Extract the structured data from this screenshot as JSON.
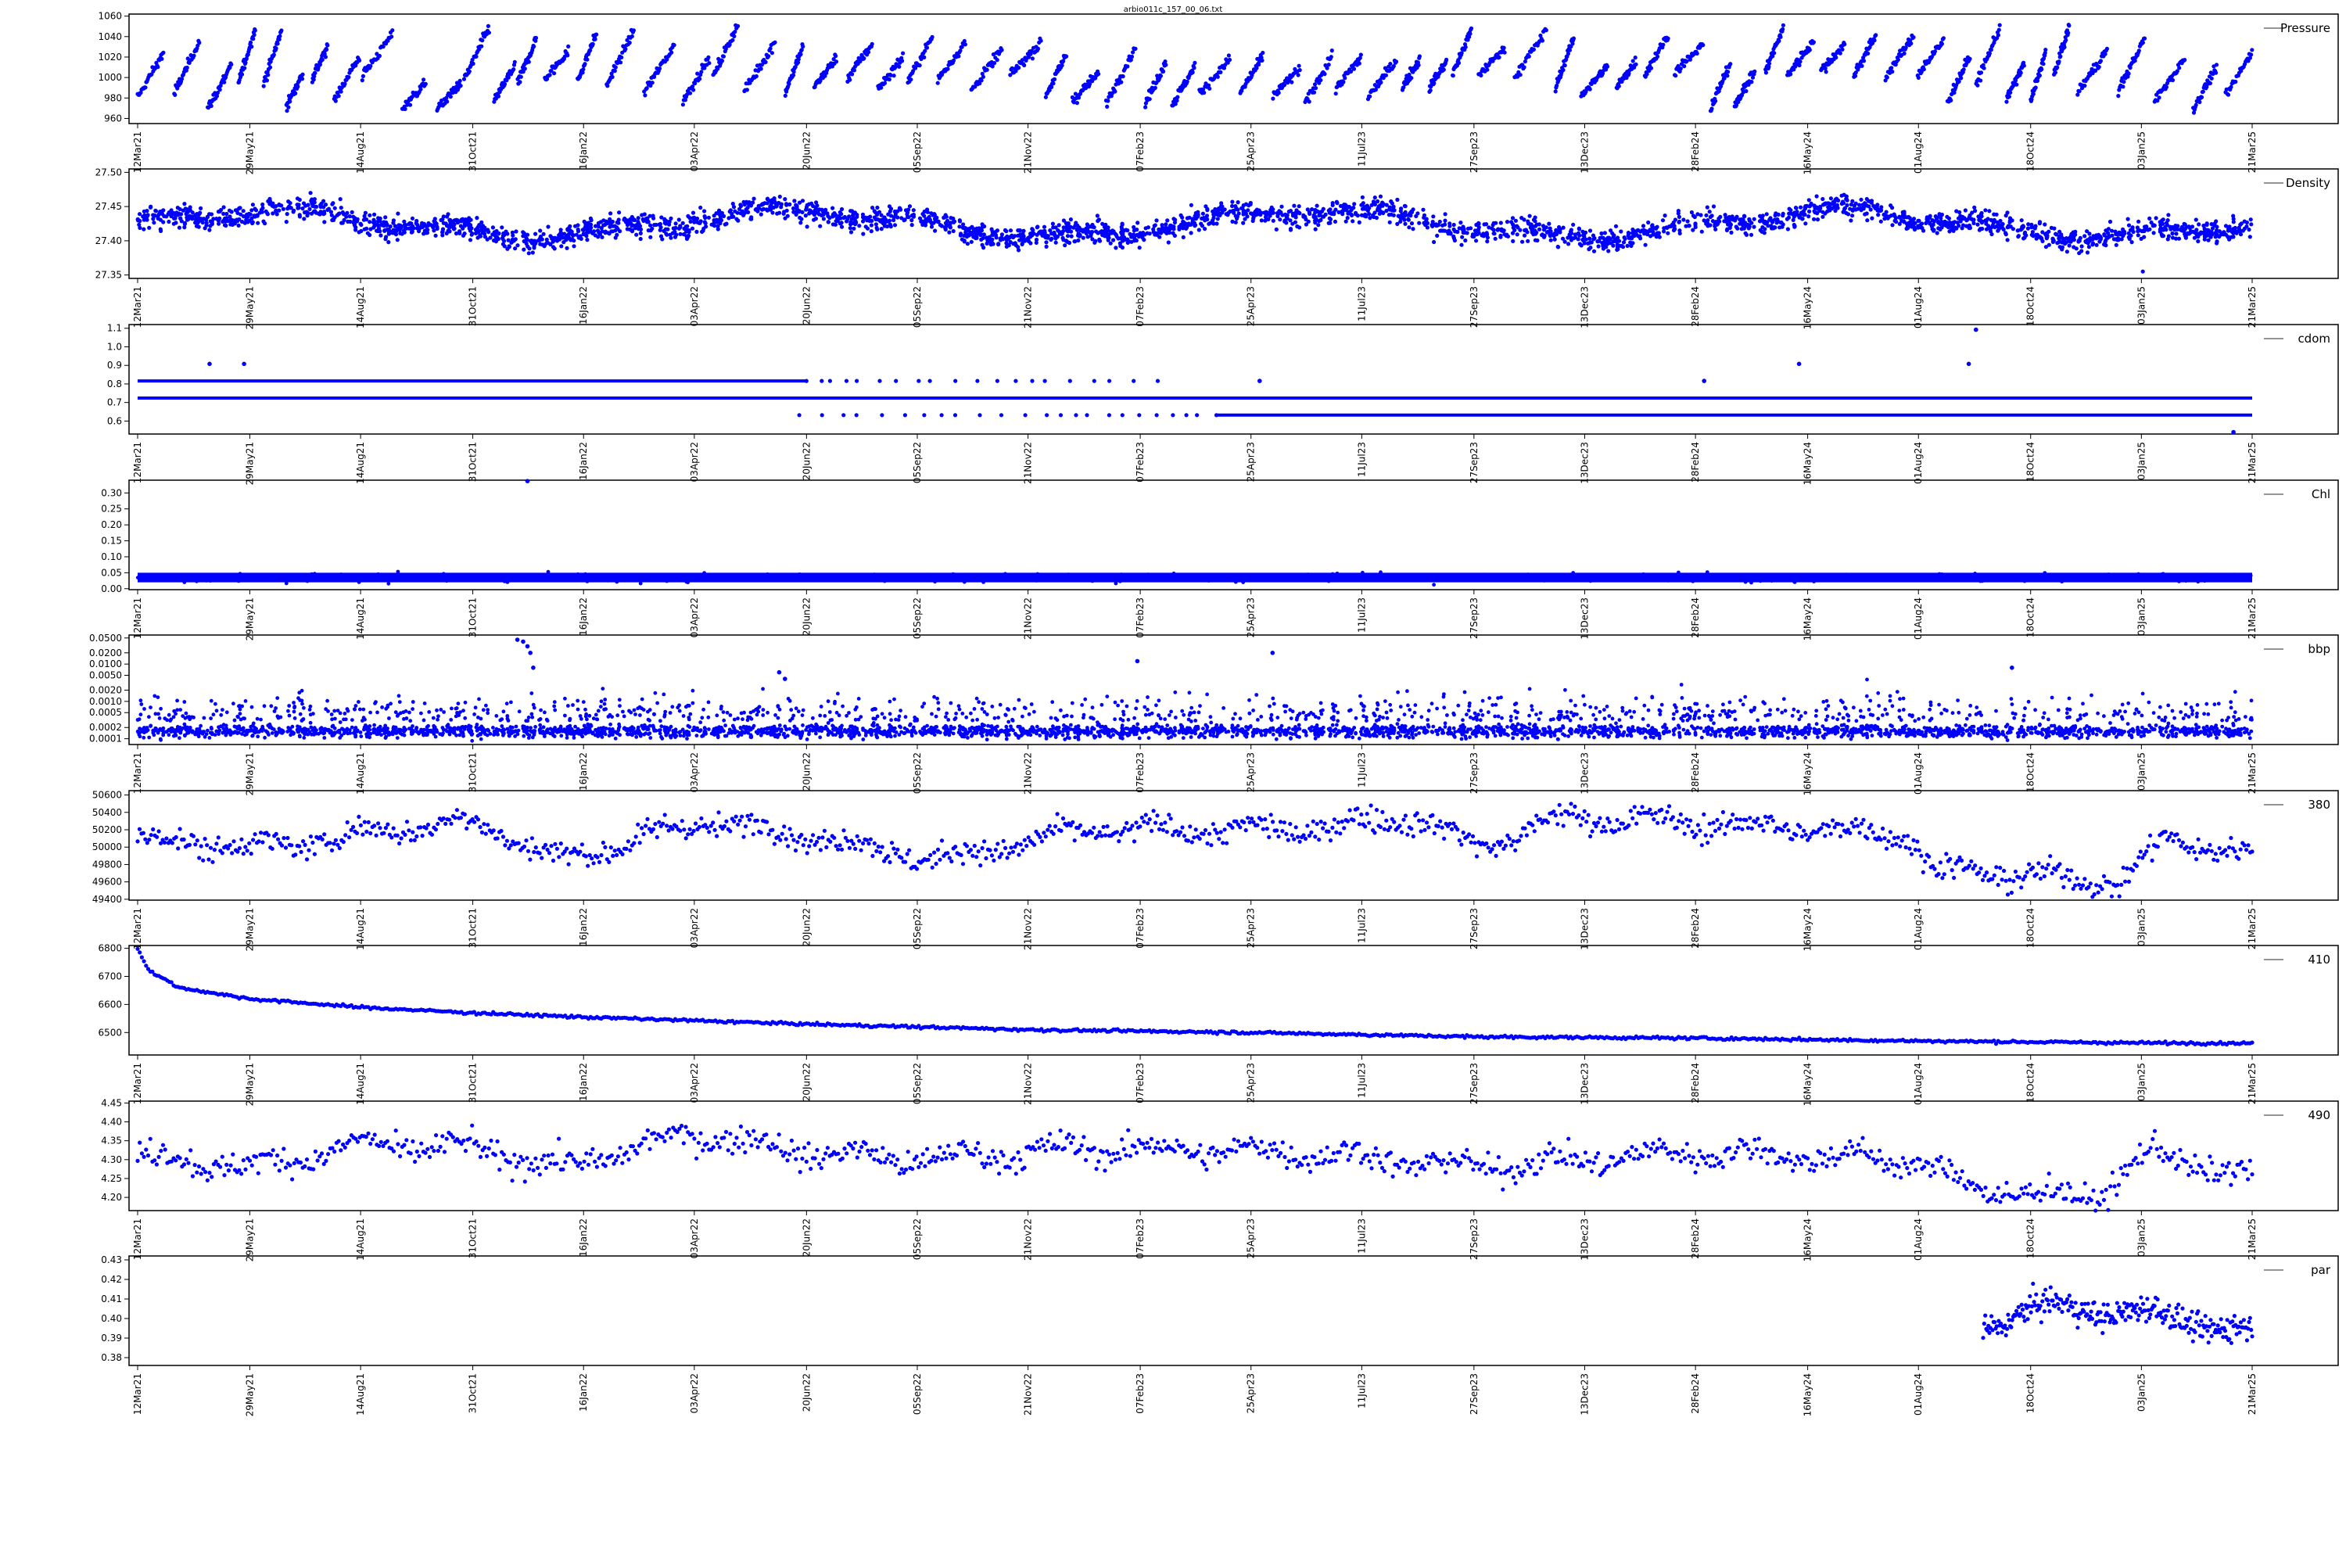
{
  "title": "arbio011c_157_00_06.txt",
  "colors": {
    "points": "#0000ff",
    "frame": "#000000",
    "background": "#ffffff",
    "legend_line": "#555555"
  },
  "x_axis": {
    "start": "2021-03-12",
    "end": "2025-03-21",
    "tick_dates": [
      "2021-03-12",
      "2021-05-29",
      "2021-08-14",
      "2021-10-31",
      "2022-01-16",
      "2022-04-03",
      "2022-06-20",
      "2022-09-05",
      "2022-11-21",
      "2023-02-07",
      "2023-04-25",
      "2023-07-11",
      "2023-09-27",
      "2023-12-13",
      "2024-02-28",
      "2024-05-16",
      "2024-08-01",
      "2024-10-18",
      "2025-01-03",
      "2025-03-21"
    ],
    "tick_labels": [
      "12Mar21",
      "29May21",
      "14Aug21",
      "31Oct21",
      "16Jan22",
      "03Apr22",
      "20Jun22",
      "05Sep22",
      "21Nov22",
      "07Feb23",
      "25Apr23",
      "11Jul23",
      "27Sep23",
      "13Dec23",
      "28Feb24",
      "16May24",
      "01Aug24",
      "18Oct24",
      "03Jan25",
      "21Mar25"
    ]
  },
  "chart_data": [
    {
      "type": "scatter",
      "legend": "Pressure",
      "ylim": [
        955,
        1062
      ],
      "yscale": "linear",
      "yticks": [
        960,
        980,
        1000,
        1020,
        1040,
        1060
      ],
      "ytick_labels": [
        "960",
        "980",
        "1000",
        "1020",
        "1040",
        "1060"
      ],
      "x_range": [
        "2021-03-12",
        "2025-03-21"
      ],
      "pattern": "sawtooth_bursts",
      "approx_range": [
        965,
        1052
      ],
      "approx_points": 2800
    },
    {
      "type": "scatter",
      "legend": "Density",
      "ylim": [
        27.345,
        27.505
      ],
      "yscale": "linear",
      "yticks": [
        27.35,
        27.4,
        27.45,
        27.5
      ],
      "ytick_labels": [
        "27.35",
        "27.40",
        "27.45",
        "27.50"
      ],
      "x_range": [
        "2021-03-12",
        "2025-03-21"
      ],
      "pattern": "dense_wavy_band",
      "approx_center": 27.425,
      "approx_band": 0.03,
      "outlier_points": [
        {
          "x": "2025-01-04",
          "y": 27.355
        }
      ],
      "approx_points": 3200
    },
    {
      "type": "scatter",
      "legend": "cdom",
      "ylim": [
        0.53,
        1.12
      ],
      "yscale": "linear",
      "yticks": [
        0.6,
        0.7,
        0.8,
        0.9,
        1.0,
        1.1
      ],
      "ytick_labels": [
        "0.6",
        "0.7",
        "0.8",
        "0.9",
        "1.0",
        "1.1"
      ],
      "x_range": [
        "2021-03-12",
        "2025-03-21"
      ],
      "pattern": "quantized_levels",
      "levels": [
        {
          "y": 0.816,
          "from": "2021-03-12",
          "to": "2022-06-20",
          "density": "dense"
        },
        {
          "y": 0.816,
          "from": "2022-06-20",
          "to": "2023-02-20",
          "density": "sparse"
        },
        {
          "y": 0.724,
          "from": "2021-03-12",
          "to": "2025-03-21",
          "density": "dense"
        },
        {
          "y": 0.632,
          "from": "2022-06-15",
          "to": "2023-04-01",
          "density": "sparse"
        },
        {
          "y": 0.632,
          "from": "2023-04-01",
          "to": "2025-03-21",
          "density": "dense"
        }
      ],
      "outlier_points": [
        {
          "x": "2021-05-01",
          "y": 0.908
        },
        {
          "x": "2021-05-25",
          "y": 0.908
        },
        {
          "x": "2023-05-01",
          "y": 0.816
        },
        {
          "x": "2024-03-05",
          "y": 0.816
        },
        {
          "x": "2024-05-10",
          "y": 0.908
        },
        {
          "x": "2024-09-05",
          "y": 0.908
        },
        {
          "x": "2024-09-10",
          "y": 1.092
        },
        {
          "x": "2025-03-08",
          "y": 0.54
        }
      ]
    },
    {
      "type": "scatter",
      "legend": "Chl",
      "ylim": [
        -0.003,
        0.34
      ],
      "yscale": "linear",
      "yticks": [
        0.0,
        0.05,
        0.1,
        0.15,
        0.2,
        0.25,
        0.3
      ],
      "ytick_labels": [
        "0.00",
        "0.05",
        "0.10",
        "0.15",
        "0.20",
        "0.25",
        "0.30"
      ],
      "x_range": [
        "2021-03-12",
        "2025-03-21"
      ],
      "pattern": "flat_band",
      "approx_band": [
        0.02,
        0.05
      ],
      "outlier_points": [
        {
          "x": "2021-12-08",
          "y": 0.337
        }
      ],
      "approx_points": 2600
    },
    {
      "type": "scatter",
      "legend": "bbp",
      "ylim": [
        7e-05,
        0.06
      ],
      "yscale": "log",
      "yticks": [
        0.0001,
        0.0002,
        0.0005,
        0.001,
        0.002,
        0.005,
        0.01,
        0.02,
        0.05
      ],
      "ytick_labels": [
        "0.0001",
        "0.0002",
        "0.0005",
        "0.0010",
        "0.0020",
        "0.0050",
        "0.0100",
        "0.0200",
        "0.0500"
      ],
      "x_range": [
        "2021-03-12",
        "2025-03-21"
      ],
      "pattern": "log_band_with_spikes",
      "approx_band": [
        0.00012,
        0.00028
      ],
      "outlier_points": [
        {
          "x": "2021-12-01",
          "y": 0.045
        },
        {
          "x": "2021-12-05",
          "y": 0.04
        },
        {
          "x": "2021-12-08",
          "y": 0.03
        },
        {
          "x": "2021-12-10",
          "y": 0.02
        },
        {
          "x": "2021-12-12",
          "y": 0.008
        },
        {
          "x": "2022-06-01",
          "y": 0.006
        },
        {
          "x": "2022-06-05",
          "y": 0.004
        },
        {
          "x": "2023-05-10",
          "y": 0.02
        },
        {
          "x": "2023-02-05",
          "y": 0.012
        },
        {
          "x": "2024-10-05",
          "y": 0.008
        }
      ],
      "approx_points": 3000
    },
    {
      "type": "scatter",
      "legend": "380",
      "ylim": [
        49390,
        50650
      ],
      "yscale": "linear",
      "yticks": [
        49400,
        49600,
        49800,
        50000,
        50200,
        50400,
        50600
      ],
      "ytick_labels": [
        "49400",
        "49600",
        "49800",
        "50000",
        "50200",
        "50400",
        "50600"
      ],
      "x_range": [
        "2021-03-12",
        "2025-03-21"
      ],
      "pattern": "noisy_trend",
      "trend": [
        {
          "x": "2021-03-12",
          "y": 50080
        },
        {
          "x": "2021-06-15",
          "y": 50000
        },
        {
          "x": "2021-09-01",
          "y": 50200
        },
        {
          "x": "2021-11-01",
          "y": 50300
        },
        {
          "x": "2022-01-01",
          "y": 49850
        },
        {
          "x": "2022-04-10",
          "y": 50300
        },
        {
          "x": "2022-06-15",
          "y": 50150
        },
        {
          "x": "2022-09-20",
          "y": 49850
        },
        {
          "x": "2023-01-01",
          "y": 50200
        },
        {
          "x": "2023-06-01",
          "y": 50200
        },
        {
          "x": "2023-08-15",
          "y": 50350
        },
        {
          "x": "2023-10-01",
          "y": 50000
        },
        {
          "x": "2023-12-01",
          "y": 50350
        },
        {
          "x": "2024-07-25",
          "y": 50150
        },
        {
          "x": "2024-08-10",
          "y": 49750
        },
        {
          "x": "2024-12-20",
          "y": 49600
        },
        {
          "x": "2025-01-20",
          "y": 50100
        },
        {
          "x": "2025-03-21",
          "y": 49900
        }
      ],
      "approx_noise": 120,
      "approx_points": 1100
    },
    {
      "type": "scatter",
      "legend": "410",
      "ylim": [
        6420,
        6810
      ],
      "yscale": "linear",
      "yticks": [
        6500,
        6600,
        6700,
        6800
      ],
      "ytick_labels": [
        "6500",
        "6600",
        "6700",
        "6800"
      ],
      "x_range": [
        "2021-03-12",
        "2025-03-21"
      ],
      "pattern": "decay",
      "trend": [
        {
          "x": "2021-03-12",
          "y": 6800
        },
        {
          "x": "2021-03-20",
          "y": 6720
        },
        {
          "x": "2021-04-10",
          "y": 6660
        },
        {
          "x": "2021-05-29",
          "y": 6620
        },
        {
          "x": "2021-08-14",
          "y": 6590
        },
        {
          "x": "2021-10-31",
          "y": 6570
        },
        {
          "x": "2022-01-16",
          "y": 6555
        },
        {
          "x": "2022-06-20",
          "y": 6530
        },
        {
          "x": "2022-11-21",
          "y": 6510
        },
        {
          "x": "2023-04-25",
          "y": 6500
        },
        {
          "x": "2023-09-27",
          "y": 6485
        },
        {
          "x": "2024-02-28",
          "y": 6480
        },
        {
          "x": "2024-08-01",
          "y": 6470
        },
        {
          "x": "2025-01-03",
          "y": 6463
        },
        {
          "x": "2025-03-21",
          "y": 6462
        }
      ],
      "approx_noise": 4,
      "approx_points": 1000
    },
    {
      "type": "scatter",
      "legend": "490",
      "ylim": [
        4.165,
        4.455
      ],
      "yscale": "linear",
      "yticks": [
        4.2,
        4.25,
        4.3,
        4.35,
        4.4,
        4.45
      ],
      "ytick_labels": [
        "4.20",
        "4.25",
        "4.30",
        "4.35",
        "4.40",
        "4.45"
      ],
      "x_range": [
        "2021-03-12",
        "2025-03-21"
      ],
      "pattern": "noisy_trend",
      "trend": [
        {
          "x": "2021-03-12",
          "y": 4.31
        },
        {
          "x": "2021-06-01",
          "y": 4.28
        },
        {
          "x": "2021-08-14",
          "y": 4.34
        },
        {
          "x": "2021-10-31",
          "y": 4.33
        },
        {
          "x": "2022-01-01",
          "y": 4.28
        },
        {
          "x": "2022-04-03",
          "y": 4.37
        },
        {
          "x": "2022-06-20",
          "y": 4.32
        },
        {
          "x": "2022-09-05",
          "y": 4.3
        },
        {
          "x": "2023-01-01",
          "y": 4.33
        },
        {
          "x": "2023-06-01",
          "y": 4.32
        },
        {
          "x": "2023-09-27",
          "y": 4.28
        },
        {
          "x": "2024-03-01",
          "y": 4.32
        },
        {
          "x": "2024-07-25",
          "y": 4.3
        },
        {
          "x": "2024-09-15",
          "y": 4.22
        },
        {
          "x": "2024-12-01",
          "y": 4.2
        },
        {
          "x": "2025-01-10",
          "y": 4.32
        },
        {
          "x": "2025-03-21",
          "y": 4.25
        }
      ],
      "approx_noise": 0.03,
      "approx_points": 1000
    },
    {
      "type": "scatter",
      "legend": "par",
      "ylim": [
        0.376,
        0.432
      ],
      "yscale": "linear",
      "yticks": [
        0.38,
        0.39,
        0.4,
        0.41,
        0.42,
        0.43
      ],
      "ytick_labels": [
        "0.38",
        "0.39",
        "0.40",
        "0.41",
        "0.42",
        "0.43"
      ],
      "x_range": [
        "2024-09-15",
        "2025-03-21"
      ],
      "pattern": "noisy_trend",
      "trend": [
        {
          "x": "2024-09-15",
          "y": 0.396
        },
        {
          "x": "2024-10-15",
          "y": 0.405
        },
        {
          "x": "2024-12-01",
          "y": 0.405
        },
        {
          "x": "2025-02-01",
          "y": 0.4
        },
        {
          "x": "2025-03-21",
          "y": 0.392
        }
      ],
      "approx_noise": 0.006,
      "approx_points": 260
    }
  ]
}
